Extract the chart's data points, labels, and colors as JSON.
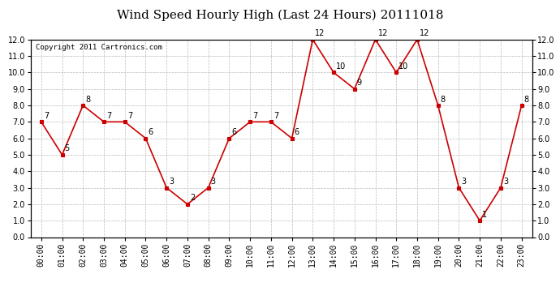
{
  "title": "Wind Speed Hourly High (Last 24 Hours) 20111018",
  "copyright": "Copyright 2011 Cartronics.com",
  "hours": [
    "00:00",
    "01:00",
    "02:00",
    "03:00",
    "04:00",
    "05:00",
    "06:00",
    "07:00",
    "08:00",
    "09:00",
    "10:00",
    "11:00",
    "12:00",
    "13:00",
    "14:00",
    "15:00",
    "16:00",
    "17:00",
    "18:00",
    "19:00",
    "20:00",
    "21:00",
    "22:00",
    "23:00"
  ],
  "values": [
    7,
    5,
    8,
    7,
    7,
    6,
    3,
    2,
    3,
    6,
    7,
    7,
    6,
    12,
    10,
    9,
    12,
    10,
    12,
    8,
    3,
    1,
    3,
    8
  ],
  "ylim": [
    0.0,
    12.0
  ],
  "yticks": [
    0.0,
    1.0,
    2.0,
    3.0,
    4.0,
    5.0,
    6.0,
    7.0,
    8.0,
    9.0,
    10.0,
    11.0,
    12.0
  ],
  "line_color": "#cc0000",
  "marker_color": "#cc0000",
  "marker_face": "#cc0000",
  "bg_color": "#ffffff",
  "grid_color": "#bbbbbb",
  "title_fontsize": 11,
  "label_fontsize": 7,
  "annotation_fontsize": 7
}
